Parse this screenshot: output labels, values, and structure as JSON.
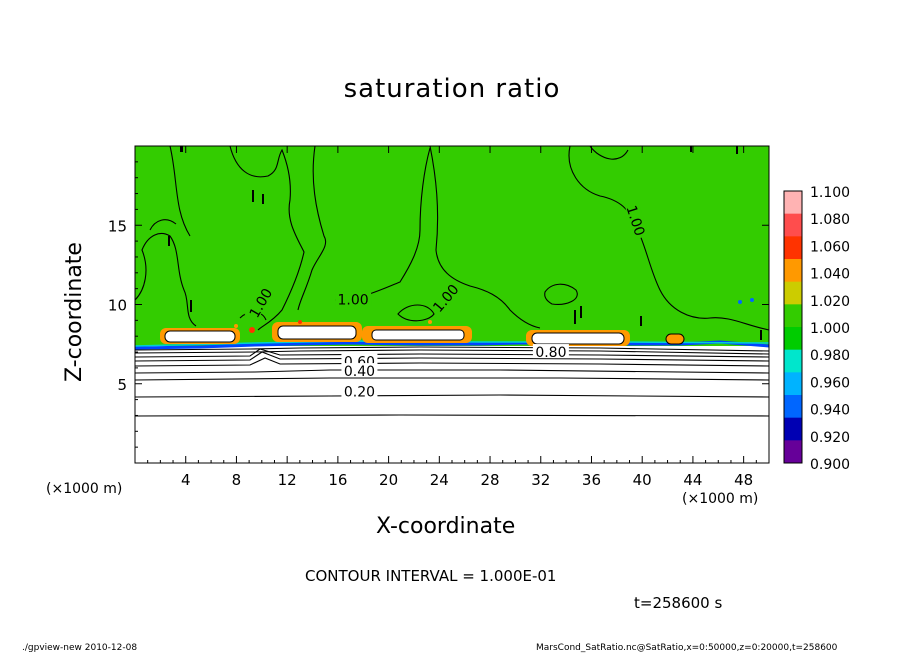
{
  "chart_data": {
    "type": "heatmap",
    "title": "saturation ratio",
    "xlabel": "X-coordinate",
    "ylabel": "Z-coordinate",
    "x_unit_label": "(×1000 m)",
    "xlim": [
      0,
      50
    ],
    "ylim": [
      0,
      20
    ],
    "x_ticks": [
      "4",
      "8",
      "12",
      "16",
      "20",
      "24",
      "28",
      "32",
      "36",
      "40",
      "44",
      "48"
    ],
    "y_ticks": [
      "5",
      "10",
      "15"
    ],
    "colorbar": {
      "levels": [
        "1.100",
        "1.080",
        "1.060",
        "1.040",
        "1.020",
        "1.000",
        "0.980",
        "0.960",
        "0.940",
        "0.920",
        "0.900"
      ],
      "colors": [
        "#ffb3b3",
        "#ff4d4d",
        "#ff3300",
        "#ff9900",
        "#cccc00",
        "#33cc00",
        "#00cc00",
        "#00e6cc",
        "#00b3ff",
        "#0066ff",
        "#0000b3",
        "#660099"
      ]
    },
    "saturated_top_value": "1.00",
    "contour_labels": [
      {
        "text": "1.00",
        "x": 17.2,
        "z": 10.3,
        "rotate": 0
      },
      {
        "text": "1.00",
        "x": 24.5,
        "z": 10.4,
        "rotate": -50
      },
      {
        "text": "1.00",
        "x": 9.9,
        "z": 10.1,
        "rotate": -60
      },
      {
        "text": "1.00",
        "x": 39.5,
        "z": 15.3,
        "rotate": 72
      },
      {
        "text": "0.80",
        "x": 32.8,
        "z": 7.0,
        "rotate": 0
      },
      {
        "text": "0.60",
        "x": 17.7,
        "z": 6.4,
        "rotate": 0
      },
      {
        "text": "0.40",
        "x": 17.7,
        "z": 5.8,
        "rotate": 0
      },
      {
        "text": "0.20",
        "x": 17.7,
        "z": 4.5,
        "rotate": 0
      }
    ],
    "subsaturated_contours_z": [
      2.9,
      4.4,
      5.0,
      5.5,
      5.8,
      6.1,
      6.4,
      6.7,
      7.0
    ],
    "cloud_base_z": 7.3
  },
  "contour_interval": "CONTOUR INTERVAL = 1.000E-01",
  "time_label": "t=258600 s",
  "footer": {
    "left": "./gpview-new  2010-12-08",
    "right": "MarsCond_SatRatio.nc@SatRatio,x=0:50000,z=0:20000,t=258600"
  }
}
